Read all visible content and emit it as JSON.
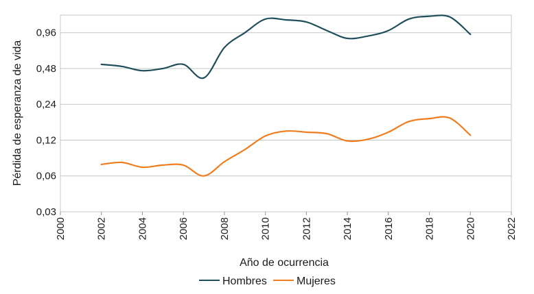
{
  "chart_data": {
    "type": "line",
    "title": "",
    "xlabel": "Año de ocurrencia",
    "ylabel": "Pérdida de esperanza de vida",
    "y_scale": "log2",
    "xlim": [
      2000,
      2022
    ],
    "ylim": [
      0.03,
      1.35
    ],
    "x_ticks": [
      2000,
      2002,
      2004,
      2006,
      2008,
      2010,
      2012,
      2014,
      2016,
      2018,
      2020,
      2022
    ],
    "x_tick_labels": [
      "2000",
      "2002",
      "2004",
      "2006",
      "2008",
      "2010",
      "2012",
      "2014",
      "2016",
      "2018",
      "2020",
      "2022"
    ],
    "y_ticks": [
      0.03,
      0.06,
      0.12,
      0.24,
      0.48,
      0.96
    ],
    "y_tick_labels": [
      "0,03",
      "0,06",
      "0,12",
      "0,24",
      "0,48",
      "0,96"
    ],
    "grid": "horizontal",
    "legend_position": "bottom-center",
    "series": [
      {
        "name": "Hombres",
        "color": "#1f4e5a",
        "x": [
          2002,
          2003,
          2004,
          2005,
          2006,
          2007,
          2008,
          2009,
          2010,
          2011,
          2012,
          2013,
          2014,
          2015,
          2016,
          2017,
          2018,
          2019,
          2020
        ],
        "values": [
          0.52,
          0.5,
          0.46,
          0.48,
          0.52,
          0.4,
          0.72,
          0.96,
          1.25,
          1.23,
          1.18,
          1.0,
          0.86,
          0.9,
          1.0,
          1.25,
          1.32,
          1.3,
          0.93
        ]
      },
      {
        "name": "Mujeres",
        "color": "#f07c1e",
        "x": [
          2002,
          2003,
          2004,
          2005,
          2006,
          2007,
          2008,
          2009,
          2010,
          2011,
          2012,
          2013,
          2014,
          2015,
          2016,
          2017,
          2018,
          2019,
          2020
        ],
        "values": [
          0.075,
          0.078,
          0.071,
          0.074,
          0.074,
          0.06,
          0.079,
          0.1,
          0.13,
          0.143,
          0.14,
          0.136,
          0.118,
          0.122,
          0.14,
          0.172,
          0.182,
          0.184,
          0.132
        ]
      }
    ]
  }
}
